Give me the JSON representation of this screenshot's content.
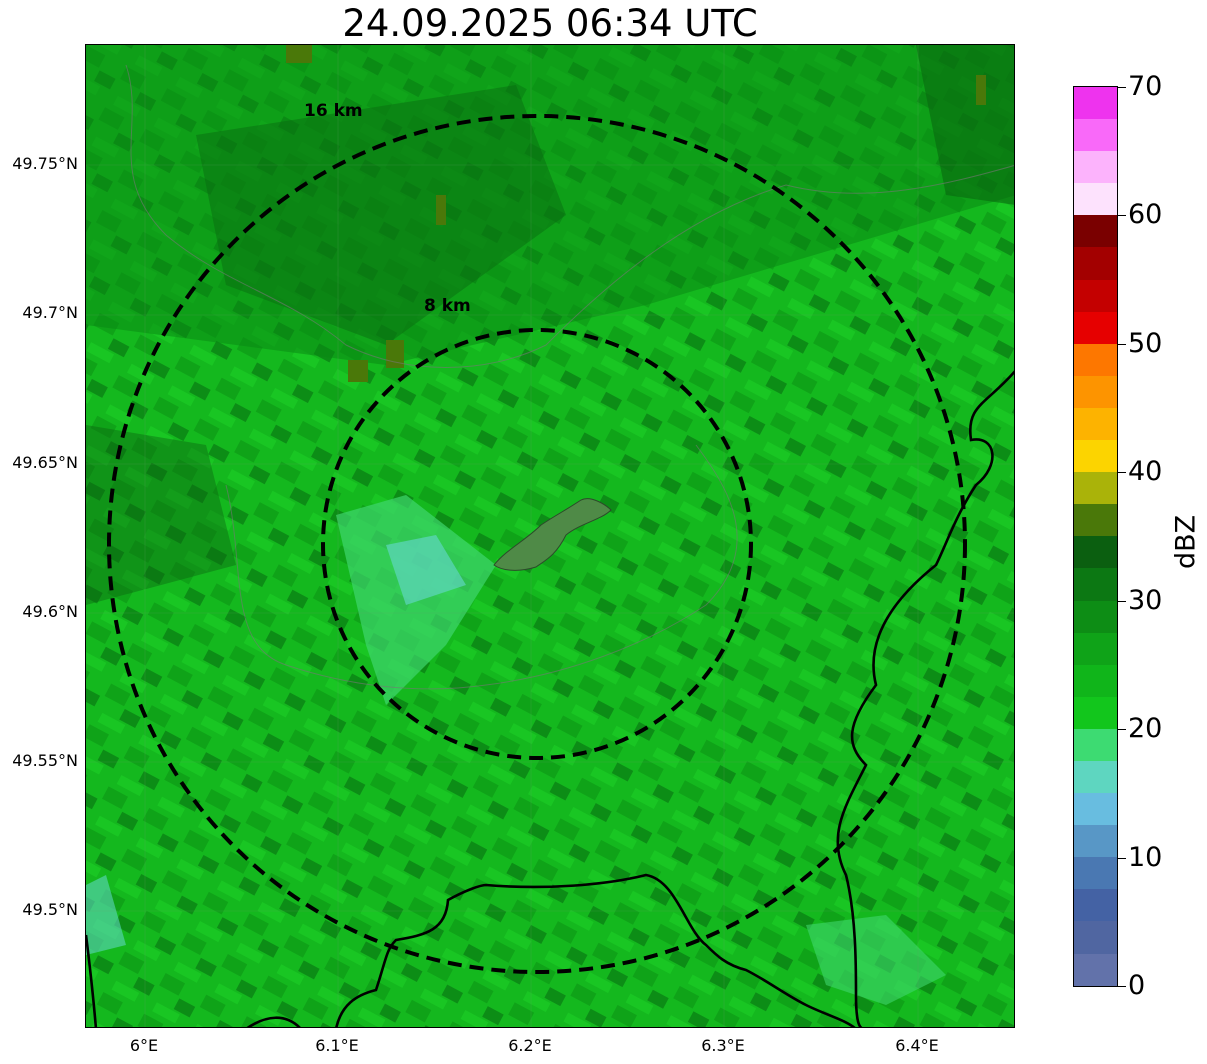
{
  "title": "24.09.2025 06:34 UTC",
  "map": {
    "lat_ticks": [
      "49.75°N",
      "49.7°N",
      "49.65°N",
      "49.6°N",
      "49.55°N",
      "49.5°N"
    ],
    "lon_ticks": [
      "6°E",
      "6.1°E",
      "6.2°E",
      "6.3°E",
      "6.4°E"
    ],
    "range_rings": [
      {
        "label": "8 km",
        "radius_km": 8
      },
      {
        "label": "16 km",
        "radius_km": 16
      }
    ],
    "ring_style": "dashed black",
    "background_field": "radar reflectivity, mostly 20-35 dBZ green echoes",
    "colors": {
      "field_base": "#14b81e",
      "field_dark": "#0a8a14",
      "field_darker": "#08690f",
      "field_light": "#3fd66e",
      "city_patch": "#4f8a47",
      "border_line": "#000000"
    }
  },
  "colorbar": {
    "label": "dBZ",
    "tick_labels": [
      "0",
      "10",
      "20",
      "30",
      "40",
      "50",
      "60",
      "70"
    ],
    "range": [
      0,
      70
    ],
    "bins": [
      "#6272aa",
      "#5066a1",
      "#4462a4",
      "#4a78b2",
      "#5897c6",
      "#68bde0",
      "#5ed6c0",
      "#3ddb72",
      "#12c61c",
      "#10b51a",
      "#0fa318",
      "#0d8d15",
      "#0c7813",
      "#0b5f10",
      "#4a7809",
      "#aab309",
      "#fcd400",
      "#fdb300",
      "#fd9400",
      "#fd7700",
      "#e60000",
      "#c40000",
      "#a30000",
      "#7a0000",
      "#fde2fd",
      "#fcb3fc",
      "#f969f9",
      "#ee33ee"
    ]
  }
}
